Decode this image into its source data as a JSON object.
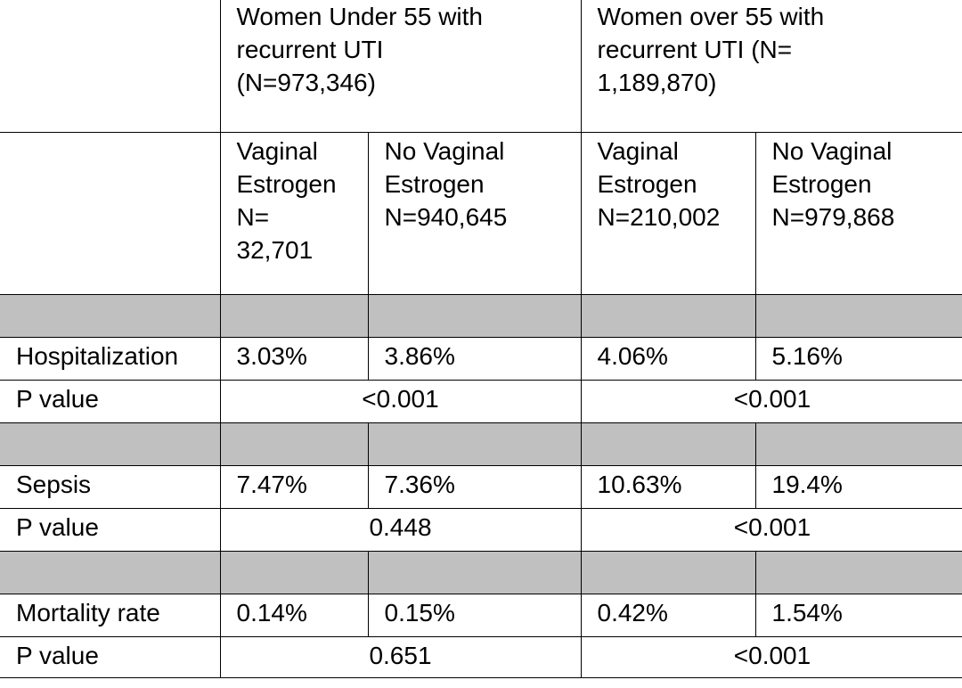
{
  "table": {
    "group_headers": [
      "Women Under 55 with\nrecurrent UTI\n(N=973,346)",
      "Women over 55 with\nrecurrent UTI (N=\n1,189,870)"
    ],
    "sub_headers": [
      "Vaginal\nEstrogen\nN=\n32,701",
      "No Vaginal\nEstrogen\nN=940,645",
      "Vaginal\nEstrogen\nN=210,002",
      "No Vaginal\nEstrogen\nN=979,868"
    ],
    "sections": [
      {
        "label": "Hospitalization",
        "values": [
          "3.03%",
          "3.86%",
          "4.06%",
          "5.16%"
        ],
        "p_label": "P value",
        "p_values": [
          "<0.001",
          "<0.001"
        ]
      },
      {
        "label": "Sepsis",
        "values": [
          "7.47%",
          "7.36%",
          "10.63%",
          "19.4%"
        ],
        "p_label": "P value",
        "p_values": [
          "0.448",
          "<0.001"
        ]
      },
      {
        "label": "Mortality rate",
        "values": [
          "0.14%",
          "0.15%",
          "0.42%",
          "1.54%"
        ],
        "p_label": "P value",
        "p_values": [
          "0.651",
          "<0.001"
        ]
      }
    ],
    "colors": {
      "band_fill": "#c0c0c0",
      "border": "#000000",
      "text": "#000000"
    }
  }
}
